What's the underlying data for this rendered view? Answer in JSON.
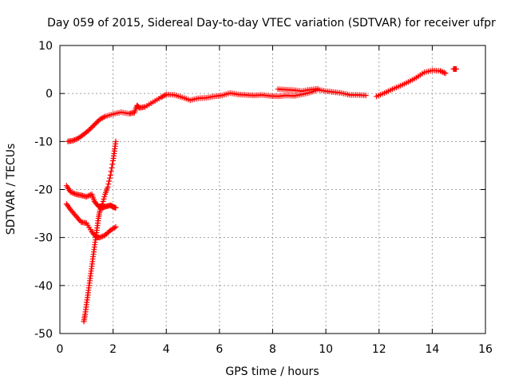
{
  "chart_data": {
    "type": "scatter",
    "title": "Day 059 of 2015, Sidereal Day-to-day VTEC variation (SDTVAR) for receiver ufpr",
    "xlabel": "GPS time / hours",
    "ylabel": "SDTVAR / TECUs",
    "xlim": [
      0,
      16
    ],
    "ylim": [
      -50,
      10
    ],
    "x_ticks": [
      "0",
      "2",
      "4",
      "6",
      "8",
      "10",
      "12",
      "14",
      "16"
    ],
    "y_ticks": [
      "10",
      "0",
      "-10",
      "-20",
      "-30",
      "-40",
      "-50"
    ],
    "grid": true,
    "marker": "plus",
    "color": "#ff0000",
    "series": [
      {
        "x": [
          0.3,
          0.5,
          0.7,
          0.9,
          1.1,
          1.3,
          1.5,
          1.7,
          2.0,
          2.3,
          2.6,
          2.8,
          2.9,
          3.0,
          3.2,
          3.5,
          3.8,
          4.0,
          4.3,
          4.6,
          4.9,
          5.2,
          5.5,
          5.8,
          6.1,
          6.4,
          6.7,
          7.0,
          7.3,
          7.6,
          7.9,
          8.2,
          8.5,
          8.8,
          9.1,
          9.4,
          9.7,
          10.0,
          10.3,
          10.6,
          10.9,
          11.2,
          11.5
        ],
        "y": [
          -10,
          -9.8,
          -9.3,
          -8.5,
          -7.6,
          -6.5,
          -5.4,
          -4.8,
          -4.3,
          -3.9,
          -4.2,
          -4.0,
          -2.5,
          -3.0,
          -2.8,
          -1.8,
          -0.8,
          -0.2,
          -0.3,
          -0.8,
          -1.4,
          -1.0,
          -0.9,
          -0.6,
          -0.4,
          0.1,
          -0.2,
          -0.3,
          -0.4,
          -0.3,
          -0.5,
          -0.6,
          -0.4,
          -0.5,
          -0.2,
          0.2,
          0.8,
          0.5,
          0.3,
          0.1,
          -0.3,
          -0.3,
          -0.4
        ]
      },
      {
        "x": [
          8.2,
          8.5,
          8.8,
          9.1,
          9.4,
          9.7
        ],
        "y": [
          0.9,
          0.8,
          0.7,
          0.5,
          0.8,
          1.0
        ]
      },
      {
        "x": [
          11.9,
          12.2,
          12.5,
          12.8,
          13.1,
          13.4,
          13.7,
          14.0,
          14.3,
          14.5
        ],
        "y": [
          -0.6,
          0.1,
          0.9,
          1.6,
          2.4,
          3.3,
          4.4,
          4.8,
          4.7,
          4.2
        ]
      },
      {
        "x": [
          14.8,
          14.9
        ],
        "y": [
          5.1,
          5.1
        ]
      },
      {
        "x": [
          0.25,
          0.4,
          0.6,
          0.8,
          1.0,
          1.2,
          1.3,
          1.45,
          1.6,
          1.75,
          1.9,
          2.0,
          2.1
        ],
        "y": [
          -19.2,
          -20.5,
          -21.0,
          -21.2,
          -21.5,
          -21.0,
          -22.5,
          -23.5,
          -23.8,
          -23.5,
          -23.3,
          -23.6,
          -23.8
        ]
      },
      {
        "x": [
          0.25,
          0.4,
          0.6,
          0.8,
          1.0,
          1.2,
          1.35,
          1.5,
          1.7,
          1.9,
          2.1
        ],
        "y": [
          -23.0,
          -24.2,
          -25.5,
          -26.8,
          -27.0,
          -28.8,
          -29.8,
          -30.0,
          -29.5,
          -28.5,
          -27.8
        ]
      },
      {
        "x": [
          0.9,
          0.95,
          1.0,
          1.05,
          1.1,
          1.15,
          1.2,
          1.25,
          1.3,
          1.35,
          1.4,
          1.45,
          1.5,
          1.6,
          1.7,
          1.8,
          1.9,
          2.0,
          2.05,
          2.1
        ],
        "y": [
          -47.5,
          -46.0,
          -44.0,
          -42.0,
          -40.0,
          -38.0,
          -36.0,
          -34.0,
          -32.0,
          -30.0,
          -28.0,
          -26.0,
          -24.5,
          -23.0,
          -21.0,
          -19.5,
          -17.0,
          -14.0,
          -12.0,
          -10.0
        ]
      }
    ]
  }
}
